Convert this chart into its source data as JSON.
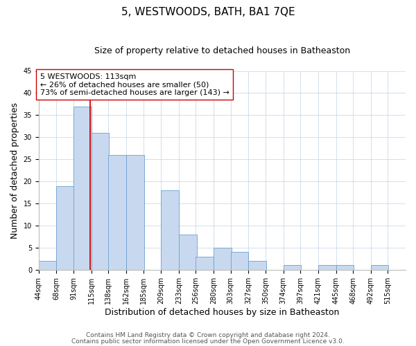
{
  "title": "5, WESTWOODS, BATH, BA1 7QE",
  "subtitle": "Size of property relative to detached houses in Batheaston",
  "xlabel": "Distribution of detached houses by size in Batheaston",
  "ylabel": "Number of detached properties",
  "bin_labels": [
    "44sqm",
    "68sqm",
    "91sqm",
    "115sqm",
    "138sqm",
    "162sqm",
    "185sqm",
    "209sqm",
    "233sqm",
    "256sqm",
    "280sqm",
    "303sqm",
    "327sqm",
    "350sqm",
    "374sqm",
    "397sqm",
    "421sqm",
    "445sqm",
    "468sqm",
    "492sqm",
    "515sqm"
  ],
  "bin_edges": [
    44,
    68,
    91,
    115,
    138,
    162,
    185,
    209,
    233,
    256,
    280,
    303,
    327,
    350,
    374,
    397,
    421,
    445,
    468,
    492,
    515
  ],
  "counts": [
    2,
    19,
    37,
    31,
    26,
    26,
    0,
    18,
    8,
    3,
    5,
    4,
    2,
    0,
    1,
    0,
    1,
    1,
    0,
    1
  ],
  "bar_color": "#c8d9ef",
  "bar_edge_color": "#6a9fd0",
  "property_value": 113,
  "vline_color": "#cc0000",
  "annotation_text": "5 WESTWOODS: 113sqm\n← 26% of detached houses are smaller (50)\n73% of semi-detached houses are larger (143) →",
  "annotation_box_color": "#ffffff",
  "annotation_box_edge": "#cc0000",
  "ylim": [
    0,
    45
  ],
  "yticks": [
    0,
    5,
    10,
    15,
    20,
    25,
    30,
    35,
    40,
    45
  ],
  "footnote1": "Contains HM Land Registry data © Crown copyright and database right 2024.",
  "footnote2": "Contains public sector information licensed under the Open Government Licence v3.0.",
  "background_color": "#ffffff",
  "grid_color": "#ccd9e8",
  "title_fontsize": 11,
  "subtitle_fontsize": 9,
  "axis_label_fontsize": 9,
  "tick_fontsize": 7,
  "annotation_fontsize": 8,
  "footnote_fontsize": 6.5
}
